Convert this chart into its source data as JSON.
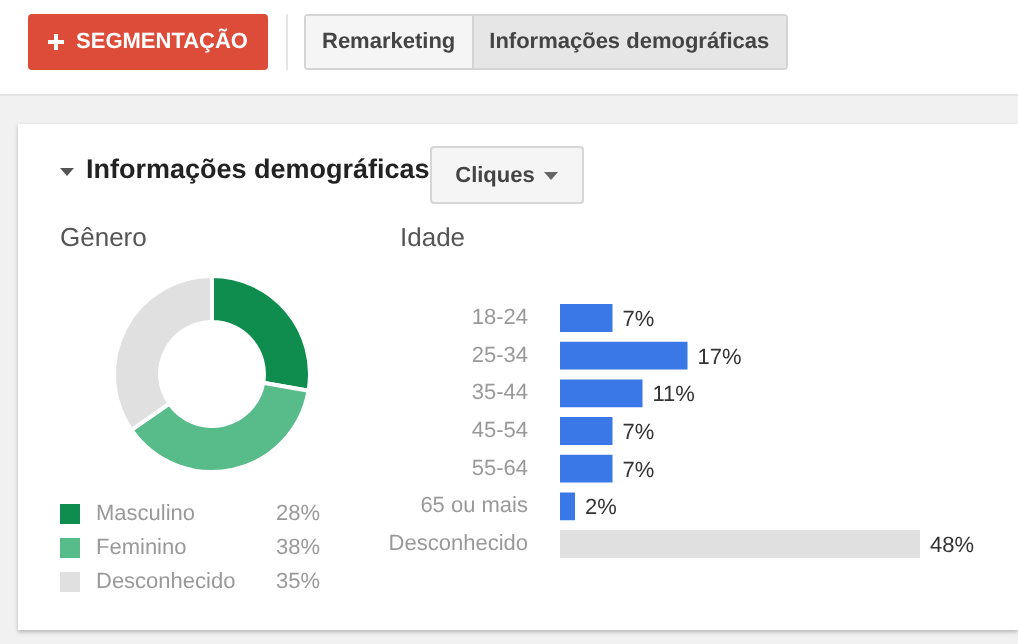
{
  "chart_data": [
    {
      "type": "other",
      "annotations": [
        "SEGMENTAÇÃO",
        "Remarketing",
        "Informações demográficas",
        "Informações demográficas",
        "Cliques"
      ]
    },
    {
      "type": "donut",
      "title": "Gênero",
      "categories": [
        "Masculino",
        "Feminino",
        "Desconhecido"
      ],
      "values": [
        28,
        38,
        35
      ],
      "colors": [
        "#0f8d4e",
        "#57bb8a",
        "#e0e0e0"
      ],
      "value_labels": [
        "28%",
        "38%",
        "35%"
      ],
      "legend": "bottom"
    },
    {
      "type": "bar",
      "orientation": "horizontal",
      "title": "Idade",
      "categories": [
        "18-24",
        "25-34",
        "35-44",
        "45-54",
        "55-64",
        "65 ou mais",
        "Desconhecido"
      ],
      "values": [
        7,
        17,
        11,
        7,
        7,
        2,
        48
      ],
      "colors": [
        "#3b78e7",
        "#3b78e7",
        "#3b78e7",
        "#3b78e7",
        "#3b78e7",
        "#3b78e7",
        "#e0e0e0"
      ],
      "value_labels": [
        "7%",
        "17%",
        "11%",
        "7%",
        "7%",
        "2%",
        "48%"
      ]
    }
  ]
}
